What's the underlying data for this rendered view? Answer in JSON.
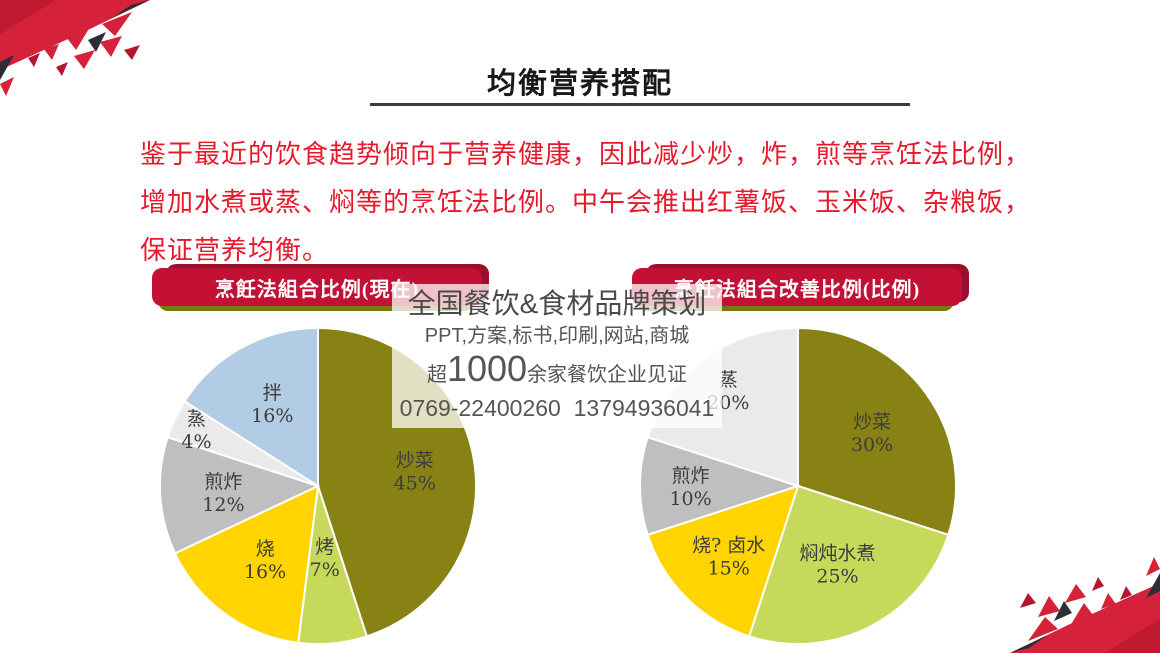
{
  "slide_title": "均衡营养搭配",
  "body_text": {
    "line1": "鉴于最近的饮食趋势倾向于营养健康，因此减少炒，炸，煎等烹饪法比例，",
    "line2": "增加水煮或蒸、焖等的烹饪法比例。中午会推出红薯饭、玉米饭、杂粮饭，",
    "line3": "保证营养均衡。"
  },
  "chart_data": [
    {
      "type": "pie",
      "title": "烹飪法組合比例(現在)",
      "labels": [
        "炒菜",
        "烤",
        "烧",
        "煎炸",
        "蒸",
        "拌"
      ],
      "values": [
        45,
        7,
        16,
        12,
        4,
        16
      ],
      "colors": [
        "#878213",
        "#c7d95b",
        "#ffd400",
        "#bfbfbf",
        "#eaeaea",
        "#b3cce5"
      ],
      "label_r": [
        0.62,
        0.45,
        0.57,
        0.6,
        0.85,
        0.6
      ],
      "start_angle_deg": 0,
      "direction": "clockwise",
      "legend": "none",
      "data_labels": "name-and-percent"
    },
    {
      "type": "pie",
      "title": "烹飪法組合改善比例(比例)",
      "labels": [
        "炒菜",
        "焖炖水煮",
        "烧? 卤水",
        "煎炸",
        "蒸"
      ],
      "values": [
        30,
        25,
        15,
        10,
        20
      ],
      "colors": [
        "#878213",
        "#c7d95b",
        "#ffd400",
        "#bfbfbf",
        "#eaeaea"
      ],
      "label_r": [
        0.58,
        0.55,
        0.62,
        0.68,
        0.75
      ],
      "start_angle_deg": 0,
      "direction": "clockwise",
      "legend": "none",
      "data_labels": "name-and-percent"
    }
  ],
  "watermark": {
    "line1": "全国餐饮&食材品牌策划",
    "line2": "PPT,方案,标书,印刷,网站,商城",
    "line3_prefix": "超",
    "line3_big": "1000",
    "line3_suffix": "余家餐饮企业见证",
    "line4": "0769-22400260  13794936041"
  },
  "colors": {
    "body_text_red": "#e8192c",
    "banner_red": "#c21134",
    "banner_shadow_dark_red": "#9a0f2e",
    "banner_stripe_olive": "#76790f",
    "title_black": "#191919",
    "underline_gray": "#3c3c3c",
    "watermark_gray": "#555555",
    "decor_red": "#d52139",
    "decor_dark_navy": "#2b2e37"
  }
}
